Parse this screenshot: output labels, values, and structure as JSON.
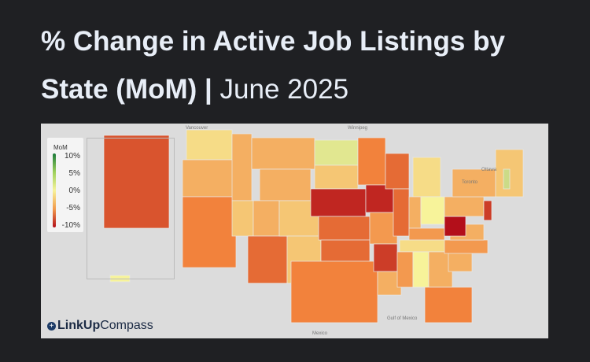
{
  "title": {
    "bold": "% Change in Active Job Listings by State (MoM) |",
    "light": " June 2025"
  },
  "legend": {
    "title": "MoM",
    "ticks": [
      "10%",
      "5%",
      "0%",
      "-5%",
      "-10%"
    ],
    "range": [
      -10,
      10
    ],
    "colors": [
      "#1a7a3a",
      "#f7f39a",
      "#b30f1a"
    ]
  },
  "logo": {
    "bold": "LinkUp",
    "light": "Compass"
  },
  "places": [
    "Vancouver",
    "Winnipeg",
    "Ottawa",
    "Toronto",
    "Gulf of Mexico",
    "Mexico"
  ],
  "states": [
    {
      "id": "AK",
      "value": -7
    },
    {
      "id": "HI",
      "value": 0
    },
    {
      "id": "WA",
      "value": -1
    },
    {
      "id": "OR",
      "value": -3
    },
    {
      "id": "CA",
      "value": -5
    },
    {
      "id": "ID",
      "value": -3
    },
    {
      "id": "NV",
      "value": -2
    },
    {
      "id": "MT",
      "value": -3
    },
    {
      "id": "WY",
      "value": -3
    },
    {
      "id": "UT",
      "value": -3
    },
    {
      "id": "AZ",
      "value": -6
    },
    {
      "id": "CO",
      "value": -2
    },
    {
      "id": "NM",
      "value": -2
    },
    {
      "id": "ND",
      "value": 1
    },
    {
      "id": "SD",
      "value": -2
    },
    {
      "id": "NE",
      "value": -9
    },
    {
      "id": "KS",
      "value": -6
    },
    {
      "id": "OK",
      "value": -6
    },
    {
      "id": "TX",
      "value": -5
    },
    {
      "id": "MN",
      "value": -5
    },
    {
      "id": "IA",
      "value": -9
    },
    {
      "id": "MO",
      "value": -4
    },
    {
      "id": "AR",
      "value": -8
    },
    {
      "id": "LA",
      "value": -3
    },
    {
      "id": "WI",
      "value": -6
    },
    {
      "id": "IL",
      "value": -6
    },
    {
      "id": "MI",
      "value": -1
    },
    {
      "id": "IN",
      "value": -3
    },
    {
      "id": "OH",
      "value": 0
    },
    {
      "id": "KY",
      "value": -4
    },
    {
      "id": "TN",
      "value": -1
    },
    {
      "id": "MS",
      "value": -4
    },
    {
      "id": "AL",
      "value": 0
    },
    {
      "id": "GA",
      "value": -3
    },
    {
      "id": "FL",
      "value": -5
    },
    {
      "id": "SC",
      "value": -3
    },
    {
      "id": "NC",
      "value": -4
    },
    {
      "id": "VA",
      "value": -3
    },
    {
      "id": "WV",
      "value": -11
    },
    {
      "id": "PA",
      "value": -3
    },
    {
      "id": "NY",
      "value": -3
    },
    {
      "id": "NJ",
      "value": -8
    },
    {
      "id": "NE-region",
      "value": -2
    },
    {
      "id": "VT",
      "value": 2
    }
  ]
}
